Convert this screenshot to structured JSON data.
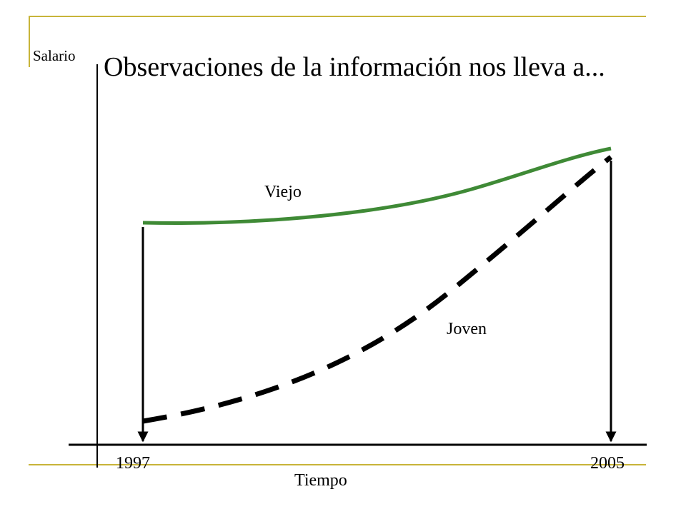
{
  "slide": {
    "title": "Observaciones de la información nos lleva a...",
    "accent_color": "#c8b439"
  },
  "chart_data": {
    "type": "line",
    "ylabel": "Salario",
    "xlabel": "Tiempo",
    "x_ticks": [
      "1997",
      "2005"
    ],
    "series": [
      {
        "name": "Viejo",
        "style": "solid",
        "color": "#3f8a36",
        "trend": "slightly increasing (convex)"
      },
      {
        "name": "Joven",
        "style": "dashed",
        "color": "#000000",
        "trend": "strongly increasing (convex)"
      }
    ],
    "annotations": [
      "vertical arrow down at 1997",
      "vertical arrow down at 2005"
    ],
    "grid": false
  }
}
